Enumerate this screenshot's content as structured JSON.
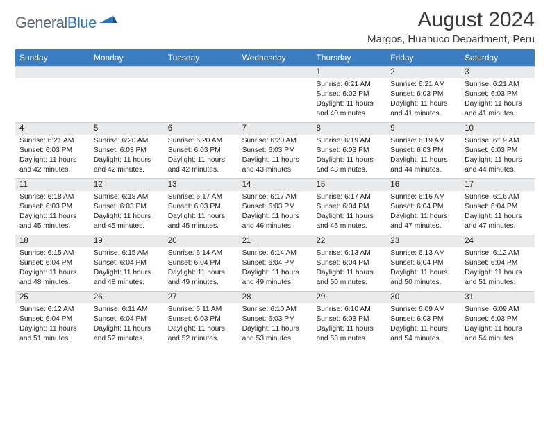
{
  "logo": {
    "text1": "General",
    "text2": "Blue"
  },
  "title": "August 2024",
  "location": "Margos, Huanuco Department, Peru",
  "colors": {
    "header_bg": "#3b7dbf",
    "daynum_bg": "#e8eaec",
    "text": "#222222",
    "logo_gray": "#5b6670",
    "logo_blue": "#2e74b5"
  },
  "fonts": {
    "title_size": 30,
    "location_size": 15,
    "header_size": 12,
    "body_size": 10.3
  },
  "dayNames": [
    "Sunday",
    "Monday",
    "Tuesday",
    "Wednesday",
    "Thursday",
    "Friday",
    "Saturday"
  ],
  "weeks": [
    [
      {
        "num": "",
        "sunrise": "",
        "sunset": "",
        "daylight": ""
      },
      {
        "num": "",
        "sunrise": "",
        "sunset": "",
        "daylight": ""
      },
      {
        "num": "",
        "sunrise": "",
        "sunset": "",
        "daylight": ""
      },
      {
        "num": "",
        "sunrise": "",
        "sunset": "",
        "daylight": ""
      },
      {
        "num": "1",
        "sunrise": "Sunrise: 6:21 AM",
        "sunset": "Sunset: 6:02 PM",
        "daylight": "Daylight: 11 hours and 40 minutes."
      },
      {
        "num": "2",
        "sunrise": "Sunrise: 6:21 AM",
        "sunset": "Sunset: 6:03 PM",
        "daylight": "Daylight: 11 hours and 41 minutes."
      },
      {
        "num": "3",
        "sunrise": "Sunrise: 6:21 AM",
        "sunset": "Sunset: 6:03 PM",
        "daylight": "Daylight: 11 hours and 41 minutes."
      }
    ],
    [
      {
        "num": "4",
        "sunrise": "Sunrise: 6:21 AM",
        "sunset": "Sunset: 6:03 PM",
        "daylight": "Daylight: 11 hours and 42 minutes."
      },
      {
        "num": "5",
        "sunrise": "Sunrise: 6:20 AM",
        "sunset": "Sunset: 6:03 PM",
        "daylight": "Daylight: 11 hours and 42 minutes."
      },
      {
        "num": "6",
        "sunrise": "Sunrise: 6:20 AM",
        "sunset": "Sunset: 6:03 PM",
        "daylight": "Daylight: 11 hours and 42 minutes."
      },
      {
        "num": "7",
        "sunrise": "Sunrise: 6:20 AM",
        "sunset": "Sunset: 6:03 PM",
        "daylight": "Daylight: 11 hours and 43 minutes."
      },
      {
        "num": "8",
        "sunrise": "Sunrise: 6:19 AM",
        "sunset": "Sunset: 6:03 PM",
        "daylight": "Daylight: 11 hours and 43 minutes."
      },
      {
        "num": "9",
        "sunrise": "Sunrise: 6:19 AM",
        "sunset": "Sunset: 6:03 PM",
        "daylight": "Daylight: 11 hours and 44 minutes."
      },
      {
        "num": "10",
        "sunrise": "Sunrise: 6:19 AM",
        "sunset": "Sunset: 6:03 PM",
        "daylight": "Daylight: 11 hours and 44 minutes."
      }
    ],
    [
      {
        "num": "11",
        "sunrise": "Sunrise: 6:18 AM",
        "sunset": "Sunset: 6:03 PM",
        "daylight": "Daylight: 11 hours and 45 minutes."
      },
      {
        "num": "12",
        "sunrise": "Sunrise: 6:18 AM",
        "sunset": "Sunset: 6:03 PM",
        "daylight": "Daylight: 11 hours and 45 minutes."
      },
      {
        "num": "13",
        "sunrise": "Sunrise: 6:17 AM",
        "sunset": "Sunset: 6:03 PM",
        "daylight": "Daylight: 11 hours and 45 minutes."
      },
      {
        "num": "14",
        "sunrise": "Sunrise: 6:17 AM",
        "sunset": "Sunset: 6:03 PM",
        "daylight": "Daylight: 11 hours and 46 minutes."
      },
      {
        "num": "15",
        "sunrise": "Sunrise: 6:17 AM",
        "sunset": "Sunset: 6:04 PM",
        "daylight": "Daylight: 11 hours and 46 minutes."
      },
      {
        "num": "16",
        "sunrise": "Sunrise: 6:16 AM",
        "sunset": "Sunset: 6:04 PM",
        "daylight": "Daylight: 11 hours and 47 minutes."
      },
      {
        "num": "17",
        "sunrise": "Sunrise: 6:16 AM",
        "sunset": "Sunset: 6:04 PM",
        "daylight": "Daylight: 11 hours and 47 minutes."
      }
    ],
    [
      {
        "num": "18",
        "sunrise": "Sunrise: 6:15 AM",
        "sunset": "Sunset: 6:04 PM",
        "daylight": "Daylight: 11 hours and 48 minutes."
      },
      {
        "num": "19",
        "sunrise": "Sunrise: 6:15 AM",
        "sunset": "Sunset: 6:04 PM",
        "daylight": "Daylight: 11 hours and 48 minutes."
      },
      {
        "num": "20",
        "sunrise": "Sunrise: 6:14 AM",
        "sunset": "Sunset: 6:04 PM",
        "daylight": "Daylight: 11 hours and 49 minutes."
      },
      {
        "num": "21",
        "sunrise": "Sunrise: 6:14 AM",
        "sunset": "Sunset: 6:04 PM",
        "daylight": "Daylight: 11 hours and 49 minutes."
      },
      {
        "num": "22",
        "sunrise": "Sunrise: 6:13 AM",
        "sunset": "Sunset: 6:04 PM",
        "daylight": "Daylight: 11 hours and 50 minutes."
      },
      {
        "num": "23",
        "sunrise": "Sunrise: 6:13 AM",
        "sunset": "Sunset: 6:04 PM",
        "daylight": "Daylight: 11 hours and 50 minutes."
      },
      {
        "num": "24",
        "sunrise": "Sunrise: 6:12 AM",
        "sunset": "Sunset: 6:04 PM",
        "daylight": "Daylight: 11 hours and 51 minutes."
      }
    ],
    [
      {
        "num": "25",
        "sunrise": "Sunrise: 6:12 AM",
        "sunset": "Sunset: 6:04 PM",
        "daylight": "Daylight: 11 hours and 51 minutes."
      },
      {
        "num": "26",
        "sunrise": "Sunrise: 6:11 AM",
        "sunset": "Sunset: 6:04 PM",
        "daylight": "Daylight: 11 hours and 52 minutes."
      },
      {
        "num": "27",
        "sunrise": "Sunrise: 6:11 AM",
        "sunset": "Sunset: 6:03 PM",
        "daylight": "Daylight: 11 hours and 52 minutes."
      },
      {
        "num": "28",
        "sunrise": "Sunrise: 6:10 AM",
        "sunset": "Sunset: 6:03 PM",
        "daylight": "Daylight: 11 hours and 53 minutes."
      },
      {
        "num": "29",
        "sunrise": "Sunrise: 6:10 AM",
        "sunset": "Sunset: 6:03 PM",
        "daylight": "Daylight: 11 hours and 53 minutes."
      },
      {
        "num": "30",
        "sunrise": "Sunrise: 6:09 AM",
        "sunset": "Sunset: 6:03 PM",
        "daylight": "Daylight: 11 hours and 54 minutes."
      },
      {
        "num": "31",
        "sunrise": "Sunrise: 6:09 AM",
        "sunset": "Sunset: 6:03 PM",
        "daylight": "Daylight: 11 hours and 54 minutes."
      }
    ]
  ]
}
